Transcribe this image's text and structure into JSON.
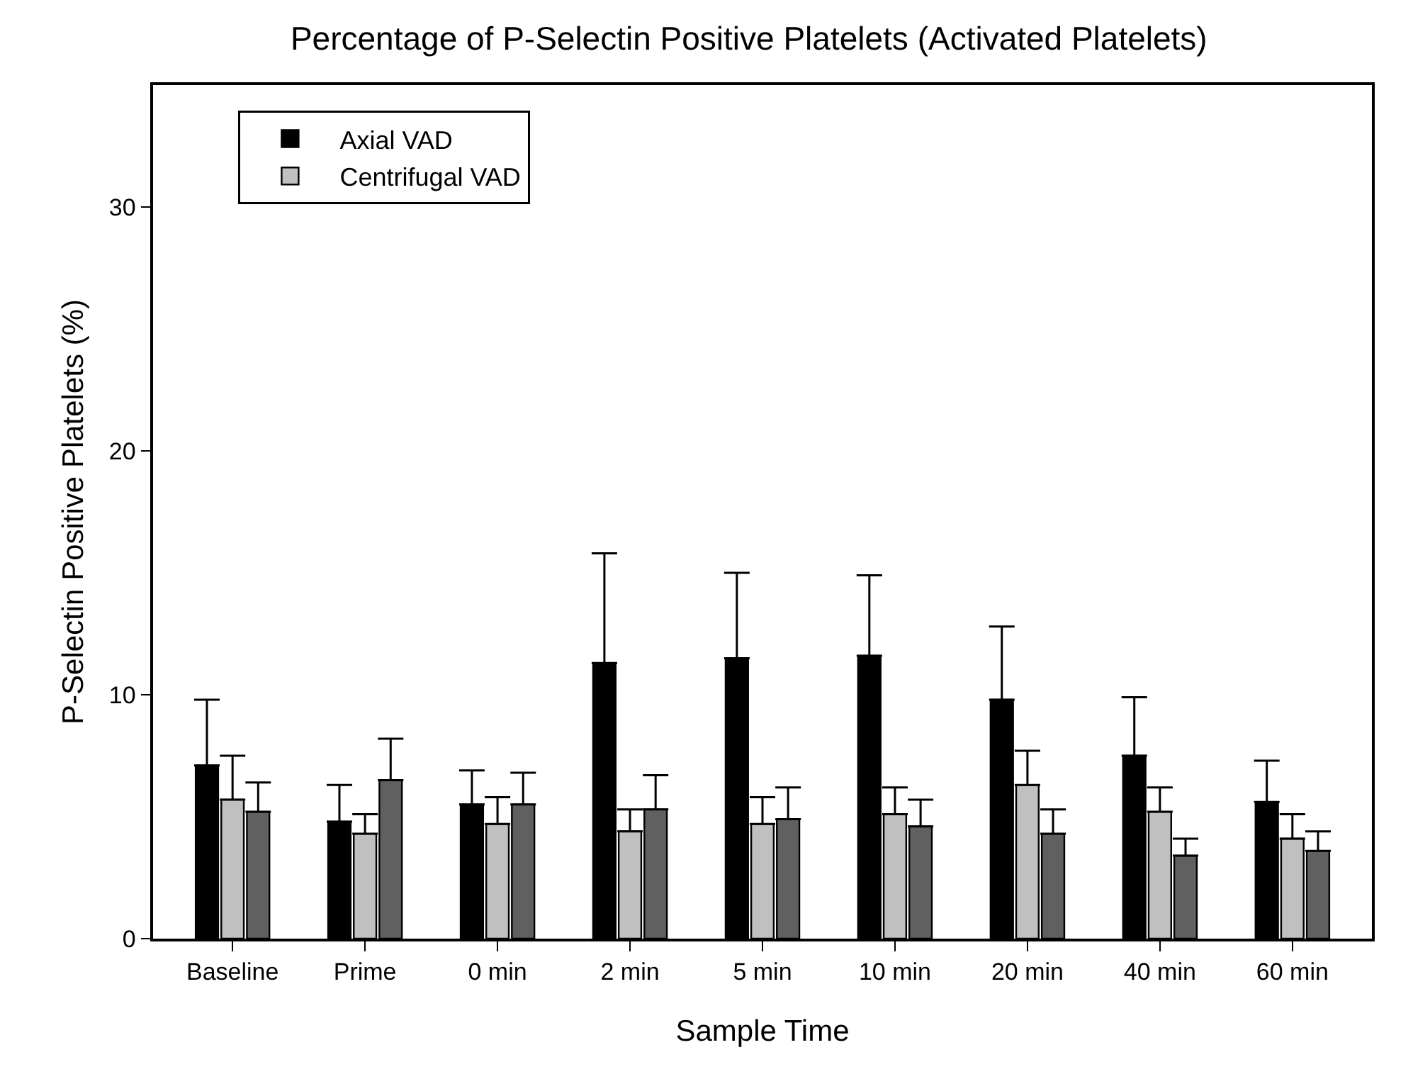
{
  "chart_data": {
    "type": "bar",
    "title": "Percentage of P-Selectin Positive Platelets (Activated Platelets)",
    "xlabel": "Sample Time",
    "ylabel": "P-Selectin Positive Platelets (%)",
    "categories": [
      "Baseline",
      "Prime",
      "0 min",
      "2 min",
      "5 min",
      "10 min",
      "20 min",
      "40 min",
      "60 min"
    ],
    "series": [
      {
        "name": "Axial VAD",
        "color": "#000000",
        "values": [
          7.1,
          4.8,
          5.5,
          11.3,
          11.5,
          11.6,
          9.8,
          7.5,
          5.6
        ],
        "errors": [
          [
            7.1,
            9.8
          ],
          [
            4.8,
            6.3
          ],
          [
            5.5,
            6.9
          ],
          [
            11.3,
            15.8
          ],
          [
            11.5,
            15.0
          ],
          [
            11.6,
            14.9
          ],
          [
            9.8,
            12.8
          ],
          [
            7.5,
            9.9
          ],
          [
            5.6,
            7.3
          ]
        ]
      },
      {
        "name": "Centrifugal VAD",
        "color": "#c0c0c0",
        "values": [
          5.7,
          4.3,
          4.7,
          4.4,
          4.7,
          5.1,
          6.3,
          5.2,
          4.1
        ],
        "errors": [
          [
            5.7,
            7.5
          ],
          [
            4.3,
            5.1
          ],
          [
            4.7,
            5.8
          ],
          [
            4.4,
            5.3
          ],
          [
            4.7,
            5.8
          ],
          [
            5.1,
            6.2
          ],
          [
            6.3,
            7.7
          ],
          [
            5.2,
            6.2
          ],
          [
            4.1,
            5.1
          ]
        ]
      },
      {
        "color": "#606060",
        "values": [
          5.2,
          6.5,
          5.5,
          5.3,
          4.9,
          4.6,
          4.3,
          3.4,
          3.6
        ],
        "errors": [
          [
            5.2,
            6.4
          ],
          [
            6.5,
            8.2
          ],
          [
            5.5,
            6.8
          ],
          [
            5.3,
            6.7
          ],
          [
            4.9,
            6.2
          ],
          [
            4.6,
            5.7
          ],
          [
            4.3,
            5.3
          ],
          [
            3.4,
            4.1
          ],
          [
            3.6,
            4.4
          ]
        ]
      }
    ],
    "ylim": [
      0,
      35
    ],
    "yticks": [
      0,
      10,
      20,
      30
    ],
    "legend": "top left"
  }
}
